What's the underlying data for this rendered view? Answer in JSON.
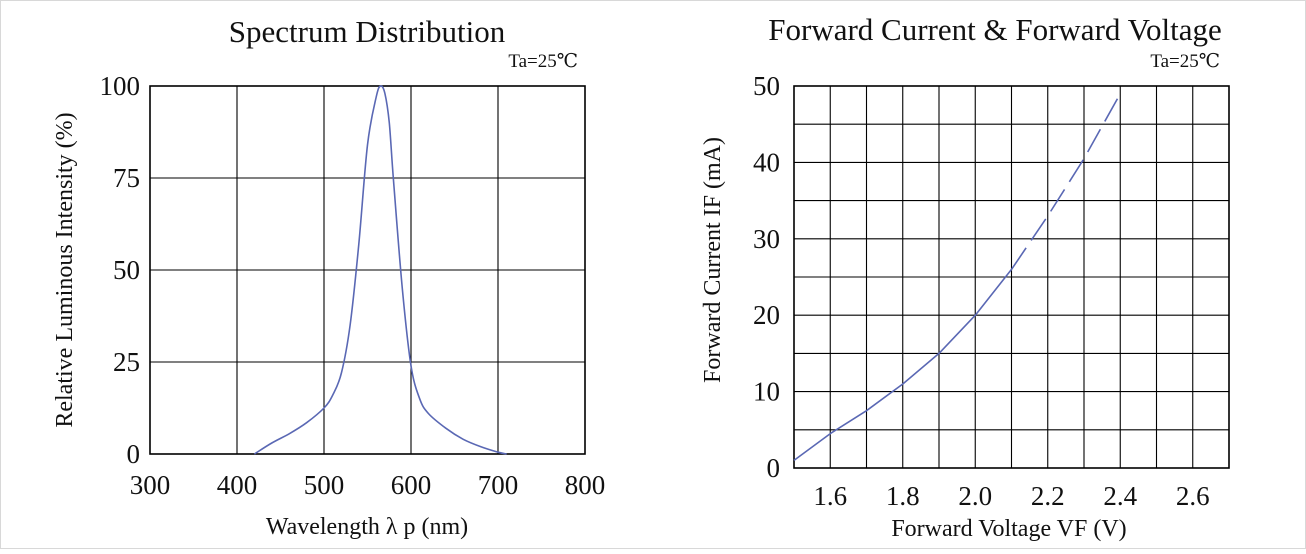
{
  "chart_data": [
    {
      "type": "line",
      "title": "Spectrum Distribution",
      "condition": "Ta=25℃",
      "xlabel": "Wavelength  λ p (nm)",
      "ylabel": "Relative Luminous Intensity (%)",
      "xlim": [
        300,
        800
      ],
      "ylim": [
        0,
        100
      ],
      "xticks": [
        "300",
        "400",
        "500",
        "600",
        "700",
        "800"
      ],
      "yticks": [
        "0",
        "25",
        "50",
        "75",
        "100"
      ],
      "grid": true,
      "series": [
        {
          "color": "#5a68b4",
          "x": [
            420,
            440,
            460,
            480,
            500,
            510,
            520,
            530,
            540,
            550,
            560,
            565,
            570,
            575,
            580,
            590,
            600,
            610,
            620,
            640,
            660,
            680,
            700,
            710
          ],
          "y": [
            0,
            3,
            5.5,
            8.5,
            12.5,
            16,
            22,
            35,
            57,
            84,
            97,
            100,
            98,
            90,
            74,
            45,
            24,
            15,
            11,
            7,
            4,
            2,
            0.5,
            0
          ]
        }
      ]
    },
    {
      "type": "line",
      "title": "Forward Current & Forward Voltage",
      "condition": "Ta=25℃",
      "xlabel": "Forward Voltage  VF (V)",
      "ylabel": "Forward Current IF (mA)",
      "xlim": [
        1.5,
        2.7
      ],
      "ylim": [
        0,
        50
      ],
      "xticks": [
        "1.6",
        "1.8",
        "2.0",
        "2.2",
        "2.4",
        "2.6"
      ],
      "yticks": [
        "0",
        "10",
        "20",
        "30",
        "40",
        "50"
      ],
      "grid": true,
      "series": [
        {
          "color": "#5a68b4",
          "style": "solid",
          "x": [
            1.5,
            1.6,
            1.7,
            1.8,
            1.9,
            2.0,
            2.1
          ],
          "y": [
            1,
            4.5,
            7.5,
            11,
            15,
            20,
            26
          ]
        },
        {
          "color": "#5a68b4",
          "style": "dashed",
          "x": [
            2.1,
            2.2,
            2.3,
            2.4
          ],
          "y": [
            26,
            33,
            40.5,
            49
          ]
        }
      ]
    }
  ]
}
